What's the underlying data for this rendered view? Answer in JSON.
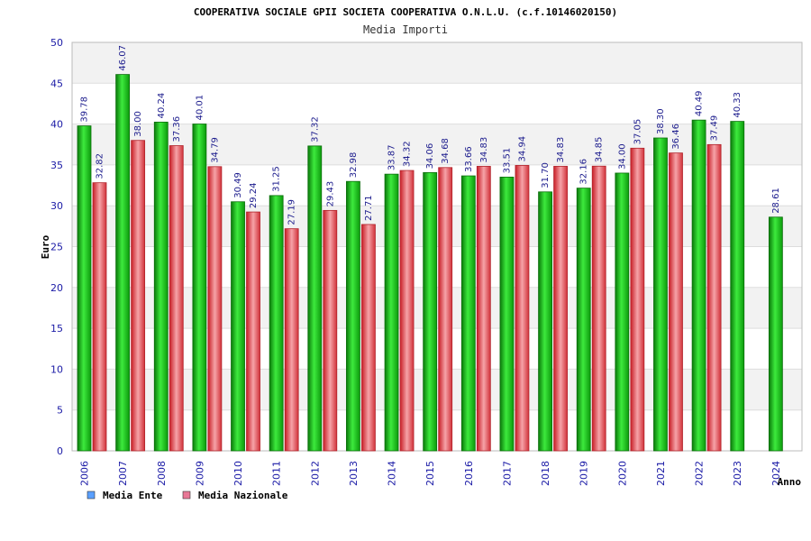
{
  "chart_data": {
    "type": "bar",
    "title": "COOPERATIVA SOCIALE GPII SOCIETA COOPERATIVA O.N.L.U. (c.f.10146020150)",
    "subtitle": "Media Importi",
    "xlabel": "Anno",
    "ylabel": "Euro",
    "ylim": [
      0,
      50
    ],
    "yticks": [
      "0",
      "5",
      "10",
      "15",
      "20",
      "25",
      "30",
      "35",
      "40",
      "45",
      "50"
    ],
    "categories": [
      "2006",
      "2007",
      "2008",
      "2009",
      "2010",
      "2011",
      "2012",
      "2013",
      "2014",
      "2015",
      "2016",
      "2017",
      "2018",
      "2019",
      "2020",
      "2021",
      "2022",
      "2023",
      "2024"
    ],
    "series": [
      {
        "name": "Media Ente",
        "color": "#1fb81f",
        "legend_color": "#5aa0ff",
        "values": [
          39.78,
          46.07,
          40.24,
          40.01,
          30.49,
          31.25,
          37.32,
          32.98,
          33.87,
          34.06,
          33.66,
          33.51,
          31.7,
          32.16,
          34.0,
          38.3,
          40.49,
          40.33,
          28.61
        ],
        "labels": [
          "39.78",
          "46.07",
          "40.24",
          "40.01",
          "30.49",
          "31.25",
          "37.32",
          "32.98",
          "33.87",
          "34.06",
          "33.66",
          "33.51",
          "31.70",
          "32.16",
          "34.00",
          "38.30",
          "40.49",
          "40.33",
          "28.61"
        ]
      },
      {
        "name": "Media Nazionale",
        "color": "#e8484f",
        "legend_color": "#e87896",
        "values": [
          32.82,
          38.0,
          37.36,
          34.79,
          29.24,
          27.19,
          29.43,
          27.71,
          34.32,
          34.68,
          34.83,
          34.94,
          34.83,
          34.85,
          37.05,
          36.46,
          37.49,
          null,
          null
        ],
        "labels": [
          "32.82",
          "38.00",
          "37.36",
          "34.79",
          "29.24",
          "27.19",
          "29.43",
          "27.71",
          "34.32",
          "34.68",
          "34.83",
          "34.94",
          "34.83",
          "34.85",
          "37.05",
          "36.46",
          "37.49",
          null,
          null
        ]
      }
    ],
    "legend_position": "bottom-left",
    "grid": true
  }
}
